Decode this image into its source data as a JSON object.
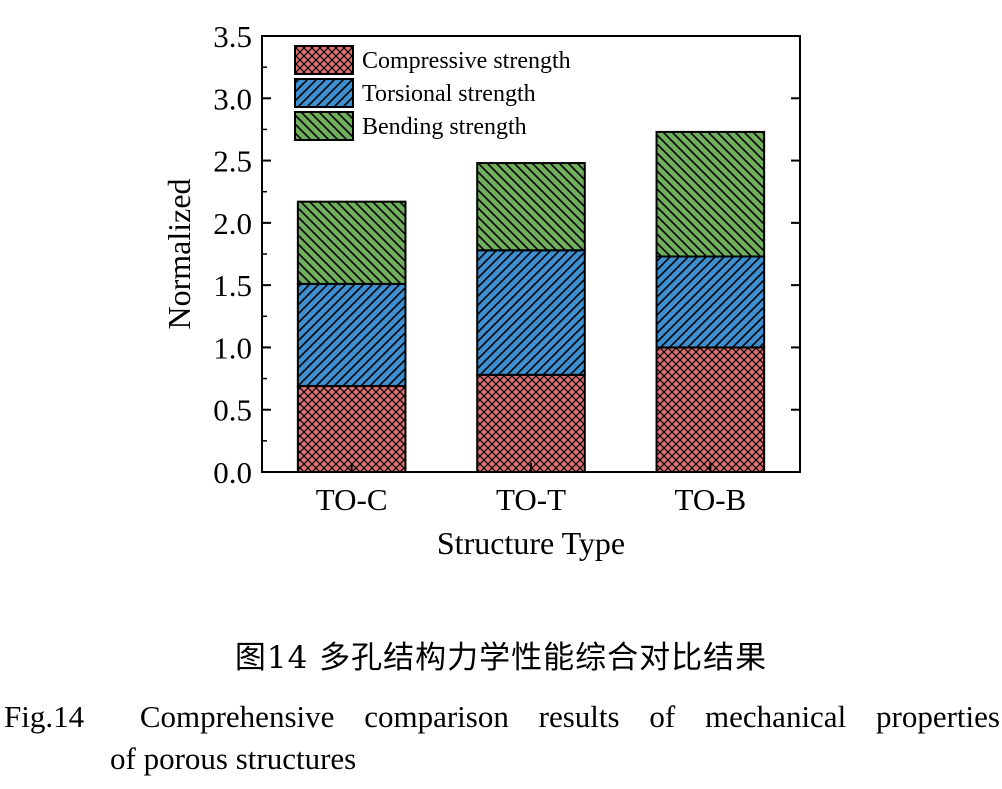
{
  "chart_data": {
    "type": "bar",
    "stacked": true,
    "categories": [
      "TO-C",
      "TO-T",
      "TO-B"
    ],
    "series": [
      {
        "name": "Compressive strength",
        "values": [
          0.69,
          0.78,
          1.0
        ],
        "color": "#e07070",
        "pattern": "crosshatch"
      },
      {
        "name": "Torsional strength",
        "values": [
          0.82,
          1.0,
          0.73
        ],
        "color": "#3d8fd0",
        "pattern": "diagonal"
      },
      {
        "name": "Bending strength",
        "values": [
          0.66,
          0.7,
          1.0
        ],
        "color": "#6fae5c",
        "pattern": "diagonal-back"
      }
    ],
    "xlabel": "Structure Type",
    "ylabel": "Normalized",
    "ylim": [
      0,
      3.5
    ],
    "yticks": [
      "0.0",
      "0.5",
      "1.0",
      "1.5",
      "2.0",
      "2.5",
      "3.0",
      "3.5"
    ],
    "grid": false,
    "legend_position": "top-left"
  },
  "caption": {
    "cn": "图14  多孔结构力学性能综合对比结果",
    "en_label": "Fig.14",
    "en_words": [
      "Comprehensive",
      "comparison",
      "results",
      "of",
      "mechanical",
      "properties"
    ],
    "en_line2": "of porous structures"
  }
}
